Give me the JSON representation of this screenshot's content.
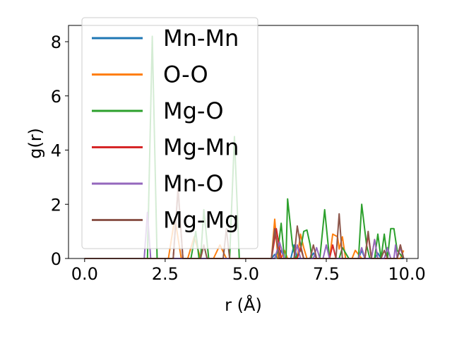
{
  "chart_data": {
    "type": "line",
    "xlabel": "r (Å)",
    "ylabel": "g(r)",
    "xlim": [
      -0.5,
      10.35
    ],
    "ylim": [
      0,
      8.6
    ],
    "xticks": [
      0.0,
      2.5,
      5.0,
      7.5,
      10.0
    ],
    "xtick_labels": [
      "0.0",
      "2.5",
      "5.0",
      "7.5",
      "10.0"
    ],
    "yticks": [
      0,
      2,
      4,
      6,
      8
    ],
    "ytick_labels": [
      "0",
      "2",
      "4",
      "6",
      "8"
    ],
    "grid": false,
    "legend_position": "top-left",
    "series": [
      {
        "name": "Mn-Mn",
        "color": "#1f77b4",
        "points": [
          [
            0,
            0
          ],
          [
            5.8,
            0
          ],
          [
            5.9,
            0.15
          ],
          [
            6.0,
            0
          ],
          [
            6.1,
            0.3
          ],
          [
            6.2,
            0
          ],
          [
            6.4,
            0
          ],
          [
            6.5,
            0.5
          ],
          [
            6.6,
            0
          ],
          [
            7.0,
            0
          ],
          [
            7.1,
            0.2
          ],
          [
            7.2,
            0
          ],
          [
            8.5,
            0
          ],
          [
            8.6,
            0.3
          ],
          [
            8.7,
            0
          ],
          [
            9.0,
            0
          ],
          [
            9.1,
            0.2
          ],
          [
            9.2,
            0
          ],
          [
            9.9,
            0
          ]
        ]
      },
      {
        "name": "O-O",
        "color": "#ff7f0e",
        "points": [
          [
            0,
            0
          ],
          [
            2.6,
            0
          ],
          [
            2.8,
            1.5
          ],
          [
            3.0,
            0
          ],
          [
            3.2,
            0
          ],
          [
            3.4,
            0.8
          ],
          [
            3.6,
            0
          ],
          [
            4.0,
            0
          ],
          [
            4.2,
            0.5
          ],
          [
            4.4,
            0
          ],
          [
            5.8,
            0
          ],
          [
            5.9,
            1.45
          ],
          [
            6.0,
            0
          ],
          [
            6.1,
            0
          ],
          [
            6.2,
            0.3
          ],
          [
            6.3,
            0
          ],
          [
            6.6,
            0
          ],
          [
            6.7,
            0.9
          ],
          [
            6.8,
            0.4
          ],
          [
            6.9,
            0
          ],
          [
            7.6,
            0
          ],
          [
            7.7,
            0.9
          ],
          [
            7.85,
            0.8
          ],
          [
            7.9,
            0.35
          ],
          [
            8.0,
            0.8
          ],
          [
            8.1,
            0
          ],
          [
            8.3,
            0
          ],
          [
            8.4,
            0.3
          ],
          [
            8.6,
            0
          ],
          [
            8.9,
            0
          ],
          [
            9.0,
            0.7
          ],
          [
            9.1,
            0
          ],
          [
            9.8,
            0
          ],
          [
            9.9,
            0.3
          ]
        ]
      },
      {
        "name": "Mg-O",
        "color": "#2ca02c",
        "points": [
          [
            0,
            0
          ],
          [
            1.95,
            0
          ],
          [
            2.1,
            8.2
          ],
          [
            2.25,
            0
          ],
          [
            3.3,
            0
          ],
          [
            3.45,
            1.0
          ],
          [
            3.55,
            0
          ],
          [
            3.6,
            0
          ],
          [
            3.7,
            1.8
          ],
          [
            3.85,
            0
          ],
          [
            4.5,
            0
          ],
          [
            4.65,
            4.5
          ],
          [
            4.8,
            0
          ],
          [
            5.9,
            0
          ],
          [
            6.0,
            0.3
          ],
          [
            6.1,
            1.3
          ],
          [
            6.2,
            0
          ],
          [
            6.25,
            0
          ],
          [
            6.3,
            2.2
          ],
          [
            6.45,
            0.5
          ],
          [
            6.55,
            0
          ],
          [
            6.7,
            0.3
          ],
          [
            6.8,
            1.0
          ],
          [
            6.9,
            1.05
          ],
          [
            7.0,
            0.5
          ],
          [
            7.05,
            0
          ],
          [
            7.3,
            0
          ],
          [
            7.45,
            1.8
          ],
          [
            7.6,
            0
          ],
          [
            7.9,
            0
          ],
          [
            8.0,
            0.4
          ],
          [
            8.2,
            0
          ],
          [
            8.5,
            0
          ],
          [
            8.6,
            2.0
          ],
          [
            8.75,
            0.5
          ],
          [
            8.85,
            0
          ],
          [
            9.0,
            0
          ],
          [
            9.1,
            0.9
          ],
          [
            9.2,
            0
          ],
          [
            9.3,
            0.9
          ],
          [
            9.4,
            0
          ],
          [
            9.5,
            1.1
          ],
          [
            9.6,
            1.1
          ],
          [
            9.7,
            0.3
          ],
          [
            9.9,
            0
          ]
        ]
      },
      {
        "name": "Mg-Mn",
        "color": "#d62728",
        "points": [
          [
            0,
            0
          ],
          [
            2.75,
            0
          ],
          [
            2.9,
            2.6
          ],
          [
            3.05,
            0
          ],
          [
            5.8,
            0
          ],
          [
            5.95,
            1.1
          ],
          [
            6.1,
            0
          ],
          [
            6.6,
            0
          ],
          [
            6.7,
            0.4
          ],
          [
            6.8,
            0
          ],
          [
            7.6,
            0
          ],
          [
            7.7,
            0.5
          ],
          [
            7.8,
            0
          ],
          [
            8.7,
            0
          ],
          [
            8.8,
            0.9
          ],
          [
            8.9,
            0
          ],
          [
            9.7,
            0
          ],
          [
            9.8,
            0.5
          ],
          [
            9.9,
            0
          ]
        ]
      },
      {
        "name": "Mn-O",
        "color": "#9467bd",
        "points": [
          [
            0,
            0
          ],
          [
            1.85,
            0
          ],
          [
            1.95,
            1.7
          ],
          [
            2.05,
            0
          ],
          [
            5.9,
            0
          ],
          [
            6.05,
            0.6
          ],
          [
            6.2,
            0
          ],
          [
            6.5,
            0
          ],
          [
            6.6,
            0.5
          ],
          [
            6.7,
            0
          ],
          [
            7.1,
            0
          ],
          [
            7.2,
            0.4
          ],
          [
            7.3,
            0
          ],
          [
            7.4,
            0
          ],
          [
            7.5,
            0.5
          ],
          [
            7.6,
            0
          ],
          [
            8.5,
            0
          ],
          [
            8.6,
            0.4
          ],
          [
            8.7,
            0
          ],
          [
            8.9,
            0
          ],
          [
            9.0,
            0.7
          ],
          [
            9.1,
            0
          ],
          [
            9.3,
            0
          ],
          [
            9.4,
            0.4
          ],
          [
            9.5,
            0
          ],
          [
            9.6,
            0
          ],
          [
            9.65,
            0.5
          ],
          [
            9.7,
            0
          ],
          [
            9.8,
            0.4
          ],
          [
            9.9,
            0
          ]
        ]
      },
      {
        "name": "Mg-Mg",
        "color": "#8c564b",
        "points": [
          [
            0,
            0
          ],
          [
            2.75,
            0
          ],
          [
            2.9,
            2.55
          ],
          [
            3.05,
            0
          ],
          [
            3.6,
            0
          ],
          [
            3.7,
            0.5
          ],
          [
            3.8,
            0
          ],
          [
            4.3,
            0
          ],
          [
            4.4,
            1.1
          ],
          [
            4.5,
            0
          ],
          [
            5.8,
            0
          ],
          [
            5.9,
            1.1
          ],
          [
            6.05,
            0
          ],
          [
            6.5,
            0
          ],
          [
            6.6,
            1.2
          ],
          [
            6.7,
            0.5
          ],
          [
            6.8,
            0
          ],
          [
            7.0,
            0
          ],
          [
            7.1,
            0.5
          ],
          [
            7.2,
            0
          ],
          [
            7.8,
            0
          ],
          [
            7.9,
            1.65
          ],
          [
            8.0,
            0
          ],
          [
            8.7,
            0
          ],
          [
            8.8,
            1.0
          ],
          [
            8.9,
            0
          ],
          [
            9.2,
            0
          ],
          [
            9.3,
            0.3
          ],
          [
            9.4,
            0
          ],
          [
            9.7,
            0
          ],
          [
            9.8,
            0.5
          ],
          [
            9.9,
            0
          ]
        ]
      }
    ]
  }
}
